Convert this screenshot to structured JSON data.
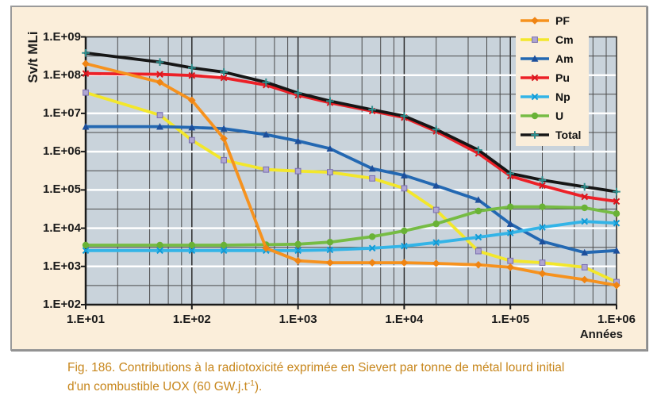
{
  "panel_bg": "#fbeeda",
  "caption": {
    "line1": "Fig. 186. Contributions à la radiotoxicité exprimée en Sievert par tonne de métal lourd initial",
    "line2_pre": "d'un combustible UOX (60 GW.j.t",
    "line2_sup": "-1",
    "line2_post": ").",
    "color": "#c7861b"
  },
  "chart_data": {
    "type": "line",
    "title": "",
    "xlabel": "Années",
    "ylabel": "Sv/t MLi",
    "x_scale": "log",
    "y_scale": "log",
    "xlim": [
      10,
      1000000
    ],
    "ylim": [
      100,
      1000000000
    ],
    "x_tick_values": [
      10,
      100,
      1000,
      10000,
      100000,
      1000000
    ],
    "x_tick_labels": [
      "1.E+01",
      "1.E+02",
      "1.E+03",
      "1.E+04",
      "1.E+05",
      "1.E+06"
    ],
    "y_tick_values": [
      100,
      1000,
      10000,
      100000,
      1000000,
      10000000,
      100000000,
      1000000000
    ],
    "y_tick_labels": [
      "1.E+02",
      "1.E+03",
      "1.E+04",
      "1.E+05",
      "1.E+06",
      "1.E+07",
      "1.E+08",
      "1.E+09"
    ],
    "plot_bg": "#c9d3db",
    "grid": {
      "horizontal_major_color": "#ffffff",
      "minor_color": "#4b4b4b",
      "vertical_major_color": "#2b2b2b",
      "vertical_minor_multiples": [
        2,
        4,
        6,
        8
      ],
      "horizontal_minor": "half-decade"
    },
    "legend_position": "top-right",
    "x": [
      10,
      50,
      100,
      200,
      500,
      1000,
      2000,
      5000,
      10000,
      20000,
      50000,
      100000,
      200000,
      500000,
      1000000
    ],
    "series": [
      {
        "name": "PF",
        "color": "#f6921e",
        "marker": "diamond",
        "marker_color": "#ef8413",
        "values": [
          200000000,
          65000000,
          22000000,
          2200000,
          3000,
          1400,
          1250,
          1250,
          1250,
          1200,
          1100,
          950,
          650,
          450,
          320
        ]
      },
      {
        "name": "Cm",
        "color": "#f3e72b",
        "marker": "square",
        "marker_color": "#afa6d2",
        "marker_stroke": "#7a6fb0",
        "values": [
          35000000,
          9000000,
          2000000,
          600000,
          340000,
          310000,
          290000,
          200000,
          110000,
          30000,
          2500,
          1400,
          1250,
          950,
          390
        ]
      },
      {
        "name": "Am",
        "color": "#2368b2",
        "marker": "triangle",
        "marker_color": "#1d4f9b",
        "values": [
          4500000,
          4500000,
          4300000,
          4000000,
          2800000,
          1900000,
          1200000,
          360000,
          240000,
          130000,
          55000,
          13000,
          4500,
          2300,
          2600
        ]
      },
      {
        "name": "Pu",
        "color": "#ec2027",
        "marker": "x",
        "marker_color": "#d8161d",
        "values": [
          110000000,
          105000000,
          98000000,
          85000000,
          55000000,
          30000000,
          19000000,
          11500000,
          7800000,
          3400000,
          900000,
          230000,
          130000,
          66000,
          50000
        ]
      },
      {
        "name": "Np",
        "color": "#33b4e7",
        "marker": "x",
        "marker_color": "#119bd7",
        "values": [
          2600,
          2600,
          2600,
          2600,
          2600,
          2600,
          2700,
          3000,
          3400,
          4200,
          5800,
          7500,
          10500,
          15000,
          13500
        ]
      },
      {
        "name": "U",
        "color": "#76bc44",
        "marker": "circle",
        "marker_color": "#69b236",
        "values": [
          3600,
          3600,
          3600,
          3600,
          3700,
          3800,
          4300,
          6000,
          8500,
          13000,
          28000,
          36000,
          36000,
          34000,
          24000
        ]
      },
      {
        "name": "Total",
        "color": "#161616",
        "marker": "plus",
        "marker_color": "#2e8f8e",
        "values": [
          380000000,
          220000000,
          155000000,
          120000000,
          65000000,
          34000000,
          21000000,
          12500000,
          8500000,
          3800000,
          1100000,
          270000,
          180000,
          120000,
          90000
        ]
      }
    ],
    "draw_order": [
      "Cm",
      "Am",
      "U",
      "Np",
      "Pu",
      "Total",
      "PF"
    ]
  }
}
